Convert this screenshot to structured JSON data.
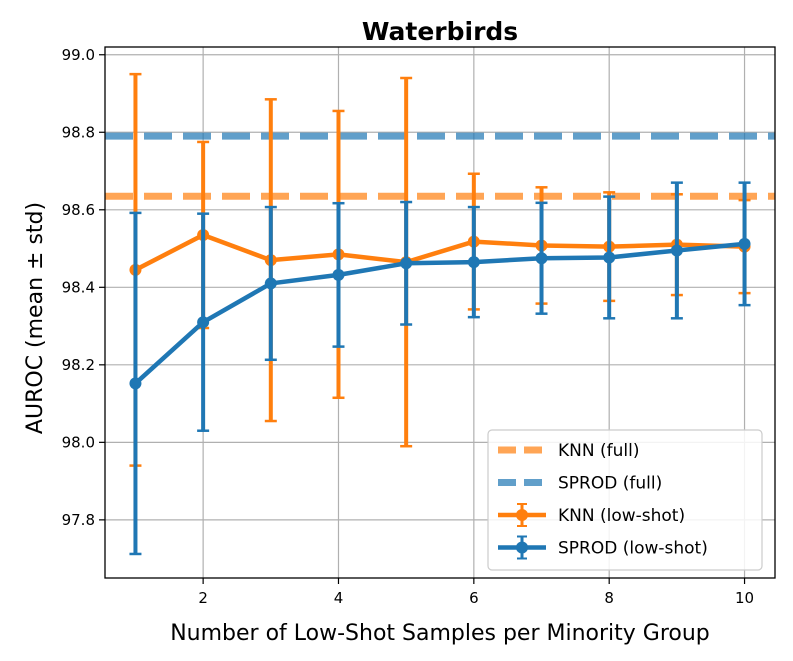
{
  "chart_data": {
    "type": "line",
    "title": "Waterbirds",
    "xlabel": "Number of Low-Shot Samples per Minority Group",
    "ylabel": "AUROC (mean ± std)",
    "xlim": [
      0.55,
      10.45
    ],
    "ylim": [
      97.65,
      99.02
    ],
    "xticks": [
      2,
      4,
      6,
      8,
      10
    ],
    "xtick_labels": [
      "2",
      "4",
      "6",
      "8",
      "10"
    ],
    "yticks": [
      97.8,
      98.0,
      98.2,
      98.4,
      98.6,
      98.8,
      99.0
    ],
    "ytick_labels": [
      "97.8",
      "98.0",
      "98.2",
      "98.4",
      "98.6",
      "98.8",
      "99.0"
    ],
    "grid": true,
    "legend_position": "lower-right",
    "x": [
      1,
      2,
      3,
      4,
      5,
      6,
      7,
      8,
      9,
      10
    ],
    "hlines": [
      {
        "name": "KNN (full)",
        "value": 98.635,
        "color": "#ff7f0e"
      },
      {
        "name": "SPROD (full)",
        "value": 98.79,
        "color": "#1f77b4"
      }
    ],
    "series": [
      {
        "name": "KNN (low-shot)",
        "color": "#ff7f0e",
        "values": [
          98.445,
          98.535,
          98.47,
          98.485,
          98.465,
          98.518,
          98.508,
          98.505,
          98.51,
          98.505
        ],
        "errors": [
          0.505,
          0.24,
          0.415,
          0.37,
          0.475,
          0.175,
          0.15,
          0.14,
          0.13,
          0.12
        ]
      },
      {
        "name": "SPROD (low-shot)",
        "color": "#1f77b4",
        "values": [
          98.152,
          98.31,
          98.41,
          98.432,
          98.462,
          98.465,
          98.475,
          98.477,
          98.495,
          98.512
        ],
        "errors": [
          0.44,
          0.28,
          0.197,
          0.185,
          0.158,
          0.142,
          0.143,
          0.157,
          0.175,
          0.158
        ]
      }
    ]
  }
}
